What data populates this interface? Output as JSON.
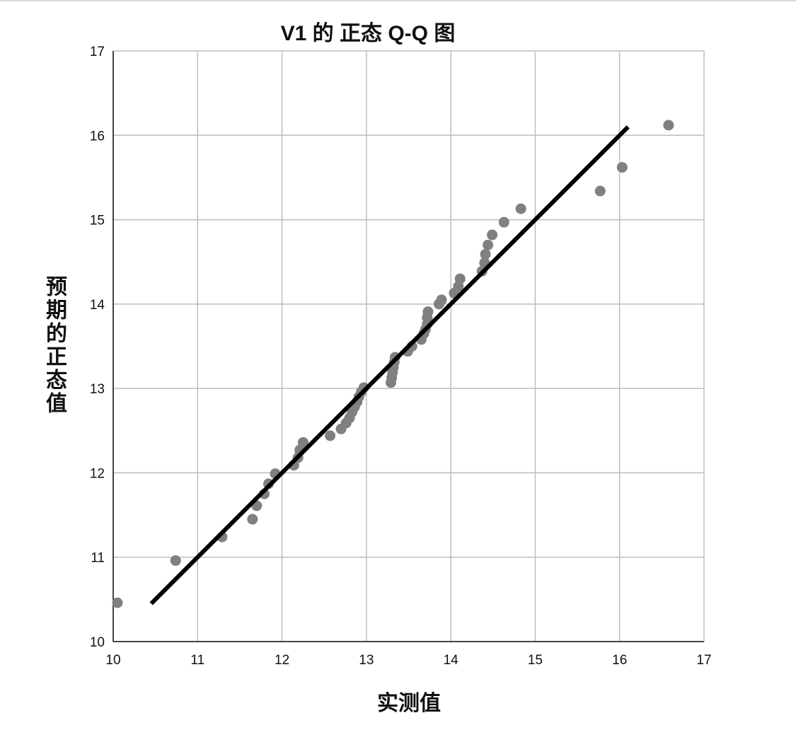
{
  "chart_data": {
    "type": "scatter",
    "title": "V1 的 正态 Q-Q 图",
    "xlabel": "实测值",
    "ylabel": "预期的正态值",
    "xlim": [
      10,
      17
    ],
    "ylim": [
      10,
      17
    ],
    "xticks": [
      "10",
      "11",
      "12",
      "13",
      "14",
      "15",
      "16",
      "17"
    ],
    "yticks": [
      "10",
      "11",
      "12",
      "13",
      "14",
      "15",
      "16",
      "17"
    ],
    "grid": true,
    "legend": "none",
    "point_color": "#808080",
    "line_color": "#000000",
    "reference_line": {
      "x": [
        10.45,
        16.1
      ],
      "y": [
        10.45,
        16.1
      ]
    },
    "points": [
      [
        10.05,
        10.46
      ],
      [
        10.74,
        10.96
      ],
      [
        11.29,
        11.24
      ],
      [
        11.65,
        11.45
      ],
      [
        11.7,
        11.61
      ],
      [
        11.79,
        11.75
      ],
      [
        11.84,
        11.87
      ],
      [
        11.92,
        11.99
      ],
      [
        12.14,
        12.09
      ],
      [
        12.19,
        12.18
      ],
      [
        12.21,
        12.27
      ],
      [
        12.25,
        12.36
      ],
      [
        12.57,
        12.44
      ],
      [
        12.7,
        12.52
      ],
      [
        12.76,
        12.59
      ],
      [
        12.8,
        12.65
      ],
      [
        12.83,
        12.72
      ],
      [
        12.86,
        12.78
      ],
      [
        12.89,
        12.84
      ],
      [
        12.91,
        12.9
      ],
      [
        12.94,
        12.96
      ],
      [
        12.97,
        13.01
      ],
      [
        13.29,
        13.07
      ],
      [
        13.3,
        13.13
      ],
      [
        13.31,
        13.19
      ],
      [
        13.32,
        13.25
      ],
      [
        13.33,
        13.31
      ],
      [
        13.34,
        13.37
      ],
      [
        13.49,
        13.44
      ],
      [
        13.54,
        13.5
      ],
      [
        13.65,
        13.58
      ],
      [
        13.68,
        13.65
      ],
      [
        13.7,
        13.7
      ],
      [
        13.72,
        13.76
      ],
      [
        13.72,
        13.84
      ],
      [
        13.73,
        13.91
      ],
      [
        13.86,
        14.0
      ],
      [
        13.89,
        14.05
      ],
      [
        14.04,
        14.13
      ],
      [
        14.09,
        14.21
      ],
      [
        14.11,
        14.3
      ],
      [
        14.37,
        14.39
      ],
      [
        14.4,
        14.49
      ],
      [
        14.41,
        14.59
      ],
      [
        14.44,
        14.7
      ],
      [
        14.49,
        14.82
      ],
      [
        14.63,
        14.97
      ],
      [
        14.83,
        15.13
      ],
      [
        15.77,
        15.34
      ],
      [
        16.03,
        15.62
      ],
      [
        16.58,
        16.12
      ]
    ]
  }
}
